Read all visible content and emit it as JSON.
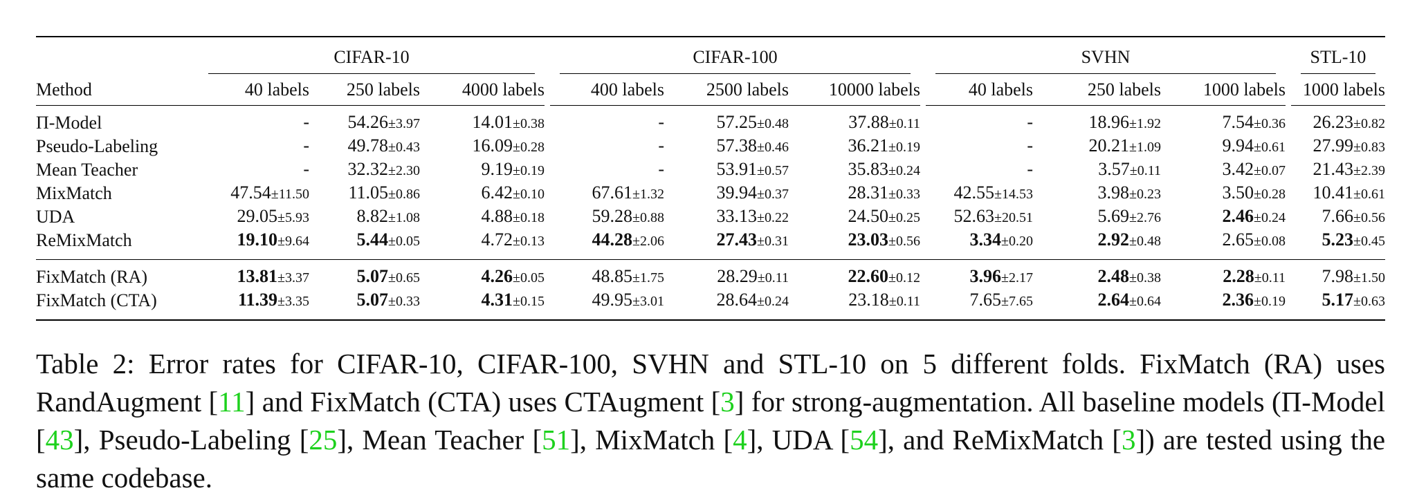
{
  "table": {
    "groups": [
      {
        "label": "",
        "span": 1
      },
      {
        "label": "CIFAR-10",
        "span": 3
      },
      {
        "label": "CIFAR-100",
        "span": 3
      },
      {
        "label": "SVHN",
        "span": 3
      },
      {
        "label": "STL-10",
        "span": 1
      }
    ],
    "columns": [
      "Method",
      "40 labels",
      "250 labels",
      "4000 labels",
      "400 labels",
      "2500 labels",
      "10000 labels",
      "40 labels",
      "250 labels",
      "1000 labels",
      "1000 labels"
    ],
    "baseline_rows": [
      {
        "method": "Π-Model",
        "cells": [
          {
            "mean": "-",
            "std": "",
            "bold": false
          },
          {
            "mean": "54.26",
            "std": "±3.97",
            "bold": false
          },
          {
            "mean": "14.01",
            "std": "±0.38",
            "bold": false
          },
          {
            "mean": "-",
            "std": "",
            "bold": false
          },
          {
            "mean": "57.25",
            "std": "±0.48",
            "bold": false
          },
          {
            "mean": "37.88",
            "std": "±0.11",
            "bold": false
          },
          {
            "mean": "-",
            "std": "",
            "bold": false
          },
          {
            "mean": "18.96",
            "std": "±1.92",
            "bold": false
          },
          {
            "mean": "7.54",
            "std": "±0.36",
            "bold": false
          },
          {
            "mean": "26.23",
            "std": "±0.82",
            "bold": false
          }
        ]
      },
      {
        "method": "Pseudo-Labeling",
        "cells": [
          {
            "mean": "-",
            "std": "",
            "bold": false
          },
          {
            "mean": "49.78",
            "std": "±0.43",
            "bold": false
          },
          {
            "mean": "16.09",
            "std": "±0.28",
            "bold": false
          },
          {
            "mean": "-",
            "std": "",
            "bold": false
          },
          {
            "mean": "57.38",
            "std": "±0.46",
            "bold": false
          },
          {
            "mean": "36.21",
            "std": "±0.19",
            "bold": false
          },
          {
            "mean": "-",
            "std": "",
            "bold": false
          },
          {
            "mean": "20.21",
            "std": "±1.09",
            "bold": false
          },
          {
            "mean": "9.94",
            "std": "±0.61",
            "bold": false
          },
          {
            "mean": "27.99",
            "std": "±0.83",
            "bold": false
          }
        ]
      },
      {
        "method": "Mean Teacher",
        "cells": [
          {
            "mean": "-",
            "std": "",
            "bold": false
          },
          {
            "mean": "32.32",
            "std": "±2.30",
            "bold": false
          },
          {
            "mean": "9.19",
            "std": "±0.19",
            "bold": false
          },
          {
            "mean": "-",
            "std": "",
            "bold": false
          },
          {
            "mean": "53.91",
            "std": "±0.57",
            "bold": false
          },
          {
            "mean": "35.83",
            "std": "±0.24",
            "bold": false
          },
          {
            "mean": "-",
            "std": "",
            "bold": false
          },
          {
            "mean": "3.57",
            "std": "±0.11",
            "bold": false
          },
          {
            "mean": "3.42",
            "std": "±0.07",
            "bold": false
          },
          {
            "mean": "21.43",
            "std": "±2.39",
            "bold": false
          }
        ]
      },
      {
        "method": "MixMatch",
        "cells": [
          {
            "mean": "47.54",
            "std": "±11.50",
            "bold": false
          },
          {
            "mean": "11.05",
            "std": "±0.86",
            "bold": false
          },
          {
            "mean": "6.42",
            "std": "±0.10",
            "bold": false
          },
          {
            "mean": "67.61",
            "std": "±1.32",
            "bold": false
          },
          {
            "mean": "39.94",
            "std": "±0.37",
            "bold": false
          },
          {
            "mean": "28.31",
            "std": "±0.33",
            "bold": false
          },
          {
            "mean": "42.55",
            "std": "±14.53",
            "bold": false
          },
          {
            "mean": "3.98",
            "std": "±0.23",
            "bold": false
          },
          {
            "mean": "3.50",
            "std": "±0.28",
            "bold": false
          },
          {
            "mean": "10.41",
            "std": "±0.61",
            "bold": false
          }
        ]
      },
      {
        "method": "UDA",
        "cells": [
          {
            "mean": "29.05",
            "std": "±5.93",
            "bold": false
          },
          {
            "mean": "8.82",
            "std": "±1.08",
            "bold": false
          },
          {
            "mean": "4.88",
            "std": "±0.18",
            "bold": false
          },
          {
            "mean": "59.28",
            "std": "±0.88",
            "bold": false
          },
          {
            "mean": "33.13",
            "std": "±0.22",
            "bold": false
          },
          {
            "mean": "24.50",
            "std": "±0.25",
            "bold": false
          },
          {
            "mean": "52.63",
            "std": "±20.51",
            "bold": false
          },
          {
            "mean": "5.69",
            "std": "±2.76",
            "bold": false
          },
          {
            "mean": "2.46",
            "std": "±0.24",
            "bold": true
          },
          {
            "mean": "7.66",
            "std": "±0.56",
            "bold": false
          }
        ]
      },
      {
        "method": "ReMixMatch",
        "cells": [
          {
            "mean": "19.10",
            "std": "±9.64",
            "bold": true
          },
          {
            "mean": "5.44",
            "std": "±0.05",
            "bold": true
          },
          {
            "mean": "4.72",
            "std": "±0.13",
            "bold": false
          },
          {
            "mean": "44.28",
            "std": "±2.06",
            "bold": true
          },
          {
            "mean": "27.43",
            "std": "±0.31",
            "bold": true
          },
          {
            "mean": "23.03",
            "std": "±0.56",
            "bold": true
          },
          {
            "mean": "3.34",
            "std": "±0.20",
            "bold": true
          },
          {
            "mean": "2.92",
            "std": "±0.48",
            "bold": true
          },
          {
            "mean": "2.65",
            "std": "±0.08",
            "bold": false
          },
          {
            "mean": "5.23",
            "std": "±0.45",
            "bold": true
          }
        ]
      }
    ],
    "fixmatch_rows": [
      {
        "method": "FixMatch (RA)",
        "cells": [
          {
            "mean": "13.81",
            "std": "±3.37",
            "bold": true
          },
          {
            "mean": "5.07",
            "std": "±0.65",
            "bold": true
          },
          {
            "mean": "4.26",
            "std": "±0.05",
            "bold": true
          },
          {
            "mean": "48.85",
            "std": "±1.75",
            "bold": false
          },
          {
            "mean": "28.29",
            "std": "±0.11",
            "bold": false
          },
          {
            "mean": "22.60",
            "std": "±0.12",
            "bold": true
          },
          {
            "mean": "3.96",
            "std": "±2.17",
            "bold": true
          },
          {
            "mean": "2.48",
            "std": "±0.38",
            "bold": true
          },
          {
            "mean": "2.28",
            "std": "±0.11",
            "bold": true
          },
          {
            "mean": "7.98",
            "std": "±1.50",
            "bold": false
          }
        ]
      },
      {
        "method": "FixMatch (CTA)",
        "cells": [
          {
            "mean": "11.39",
            "std": "±3.35",
            "bold": true
          },
          {
            "mean": "5.07",
            "std": "±0.33",
            "bold": true
          },
          {
            "mean": "4.31",
            "std": "±0.15",
            "bold": true
          },
          {
            "mean": "49.95",
            "std": "±3.01",
            "bold": false
          },
          {
            "mean": "28.64",
            "std": "±0.24",
            "bold": false
          },
          {
            "mean": "23.18",
            "std": "±0.11",
            "bold": false
          },
          {
            "mean": "7.65",
            "std": "±7.65",
            "bold": false
          },
          {
            "mean": "2.64",
            "std": "±0.64",
            "bold": true
          },
          {
            "mean": "2.36",
            "std": "±0.19",
            "bold": true
          },
          {
            "mean": "5.17",
            "std": "±0.63",
            "bold": true
          }
        ]
      }
    ]
  },
  "caption": {
    "segments": [
      {
        "text": "Table 2: Error rates for CIFAR-10, CIFAR-100, SVHN and STL-10 on 5 different folds. FixMatch (RA) uses RandAugment [",
        "cite": false
      },
      {
        "text": "11",
        "cite": true
      },
      {
        "text": "] and FixMatch (CTA) uses CTAugment [",
        "cite": false
      },
      {
        "text": "3",
        "cite": true
      },
      {
        "text": "] for strong-augmentation. All baseline models (Π-Model [",
        "cite": false
      },
      {
        "text": "43",
        "cite": true
      },
      {
        "text": "], Pseudo-Labeling [",
        "cite": false
      },
      {
        "text": "25",
        "cite": true
      },
      {
        "text": "], Mean Teacher [",
        "cite": false
      },
      {
        "text": "51",
        "cite": true
      },
      {
        "text": "], MixMatch [",
        "cite": false
      },
      {
        "text": "4",
        "cite": true
      },
      {
        "text": "], UDA [",
        "cite": false
      },
      {
        "text": "54",
        "cite": true
      },
      {
        "text": "], and ReMixMatch [",
        "cite": false
      },
      {
        "text": "3",
        "cite": true
      },
      {
        "text": "]) are tested using the same codebase.",
        "cite": false
      }
    ]
  }
}
